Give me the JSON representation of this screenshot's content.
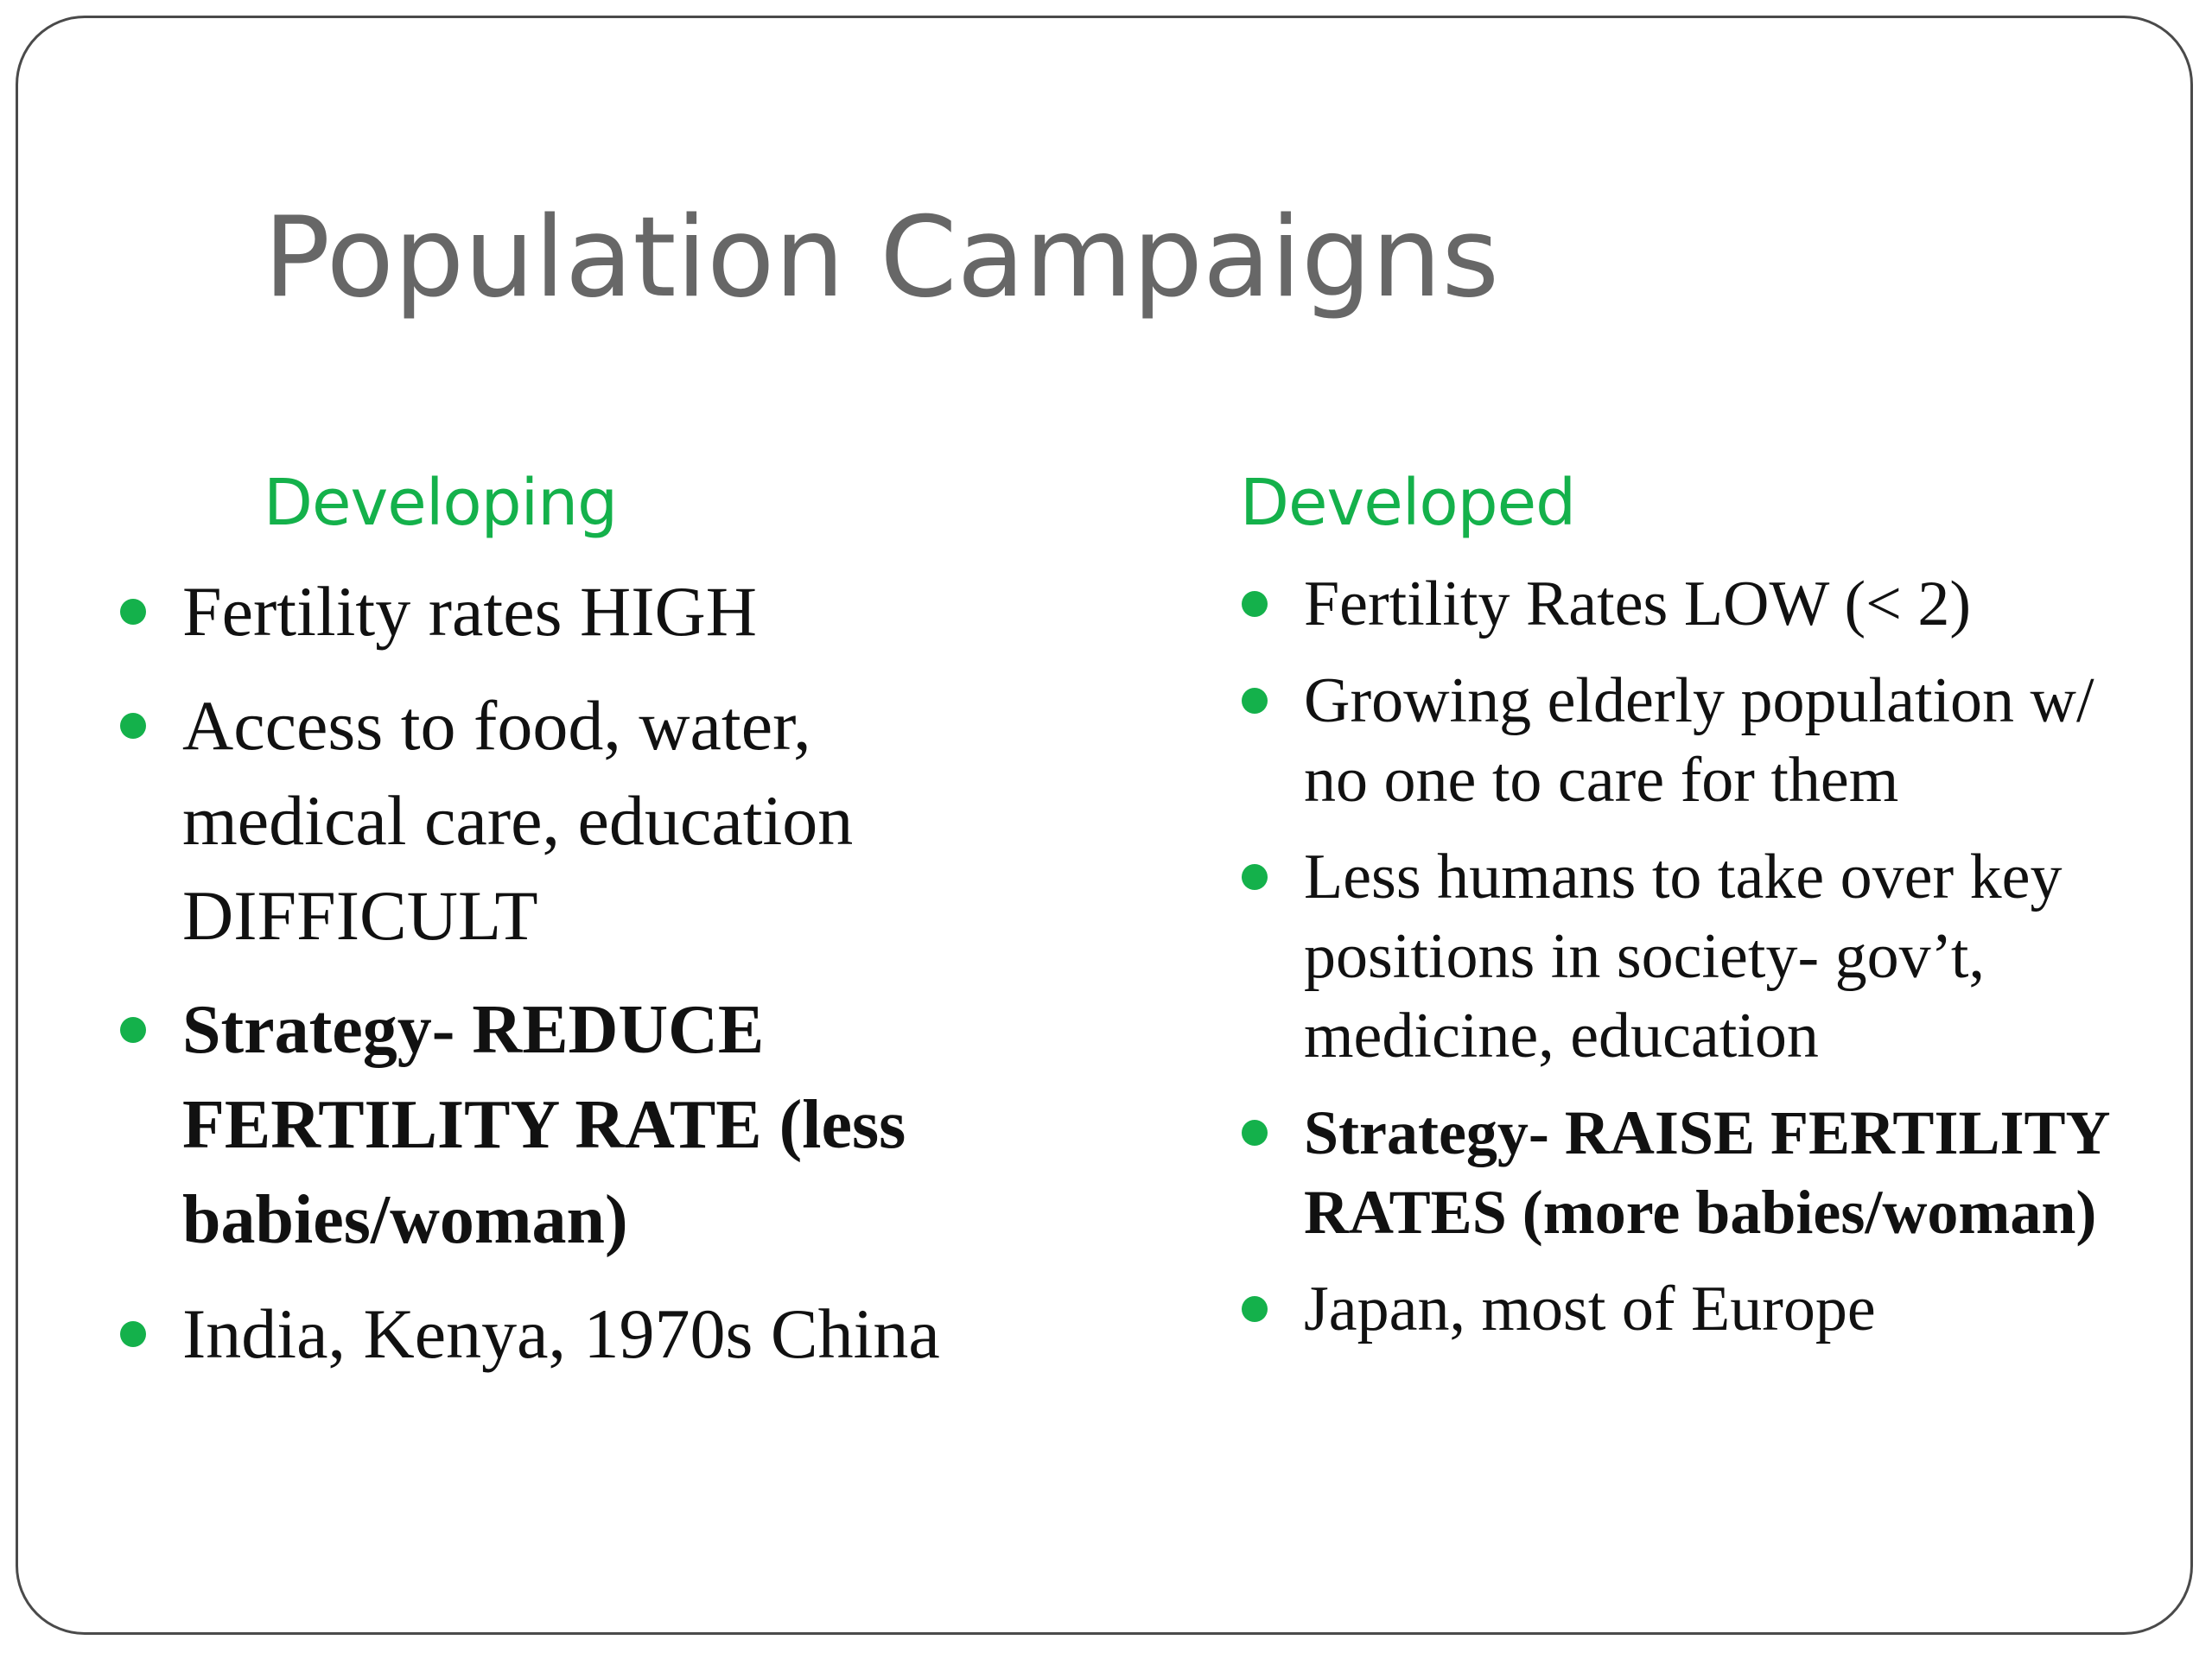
{
  "slide": {
    "title": "Population Campaigns",
    "accent_color": "#14b14b",
    "title_color": "#676767",
    "columns": [
      {
        "heading": "Developing",
        "bullets": [
          {
            "text": "Fertility rates HIGH",
            "bold": false
          },
          {
            "text": "Access to food, water, medical care, education DIFFICULT",
            "bold": false
          },
          {
            "text": "Strategy- REDUCE FERTILITY RATE (less babies/woman)",
            "bold": true
          },
          {
            "text": "India, Kenya, 1970s China",
            "bold": false
          }
        ]
      },
      {
        "heading": "Developed",
        "bullets": [
          {
            "text": "Fertility Rates LOW (< 2)",
            "bold": false
          },
          {
            "text": "Growing elderly population w/ no one to care for them",
            "bold": false
          },
          {
            "text": "Less humans to take over key positions in society- gov’t, medicine, education",
            "bold": false
          },
          {
            "text": "Strategy- RAISE FERTILITY RATES (more babies/woman)",
            "bold": true
          },
          {
            "text": "Japan, most of Europe",
            "bold": false
          }
        ]
      }
    ]
  }
}
